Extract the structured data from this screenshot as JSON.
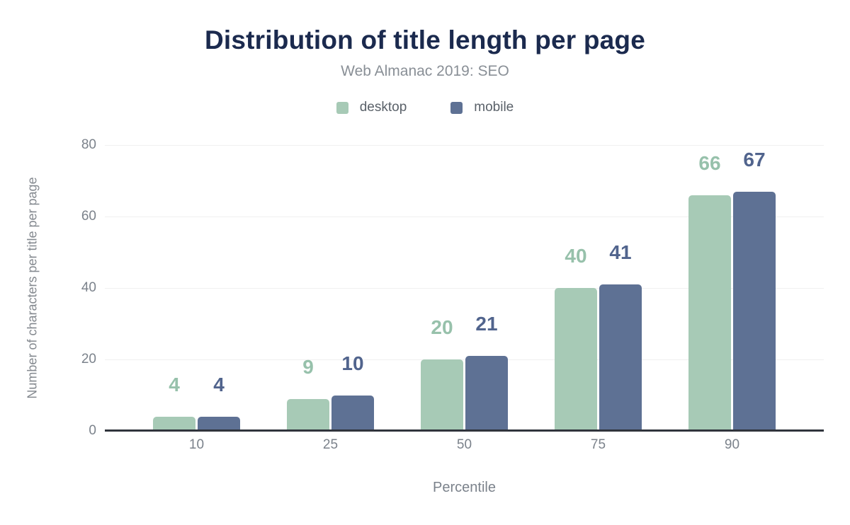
{
  "figure": {
    "title": "Distribution of title length per page",
    "subtitle": "Web Almanac 2019: SEO"
  },
  "chart_data": {
    "type": "bar",
    "title": "Distribution of title length per page",
    "subtitle": "Web Almanac 2019: SEO",
    "categories": [
      "10",
      "25",
      "50",
      "75",
      "90"
    ],
    "series": [
      {
        "name": "desktop",
        "color": "#a7cab6",
        "label_color": "#97c1ab",
        "values": [
          4,
          9,
          20,
          40,
          66
        ]
      },
      {
        "name": "mobile",
        "color": "#5e7194",
        "label_color": "#51648d",
        "values": [
          4,
          10,
          21,
          41,
          67
        ]
      }
    ],
    "xlabel": "Percentile",
    "ylabel": "Number of characters per title per page",
    "ylim": [
      0,
      80
    ],
    "yticks": [
      0,
      20,
      40,
      60,
      80
    ],
    "grid": true,
    "legend_position": "top",
    "annotations": "value labels above each bar"
  },
  "colors": {
    "title": "#1b2a4e",
    "subtitle": "#898f96",
    "legend_text": "#5a6169",
    "tick_label": "#7b828b",
    "axis_title": "#84898f",
    "gridline": "#f0f0f0",
    "axis_line": "#30343c",
    "background": "#ffffff"
  }
}
